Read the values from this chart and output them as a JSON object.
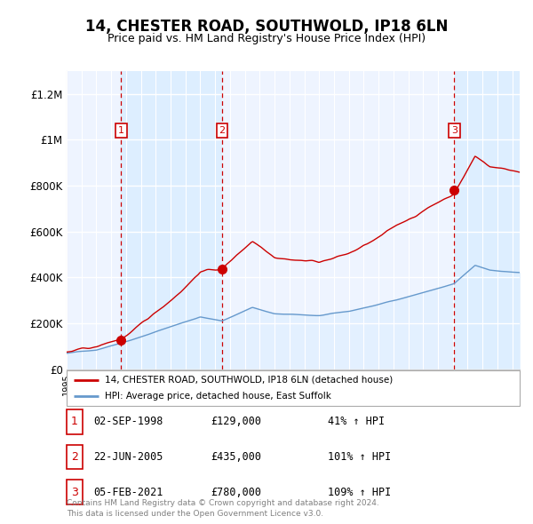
{
  "title": "14, CHESTER ROAD, SOUTHWOLD, IP18 6LN",
  "subtitle": "Price paid vs. HM Land Registry's House Price Index (HPI)",
  "sale_dates_decimal": [
    1998.67,
    2005.47,
    2021.09
  ],
  "sale_prices": [
    129000,
    435000,
    780000
  ],
  "sale_labels": [
    "1",
    "2",
    "3"
  ],
  "ylim": [
    0,
    1300000
  ],
  "yticks": [
    0,
    200000,
    400000,
    600000,
    800000,
    1000000,
    1200000
  ],
  "ytick_labels": [
    "£0",
    "£200K",
    "£400K",
    "£600K",
    "£800K",
    "£1M",
    "£1.2M"
  ],
  "house_color": "#cc0000",
  "hpi_color": "#6699cc",
  "hpi_fill_color": "#ddeeff",
  "shade_color": "#ddeeff",
  "grid_color": "#cccccc",
  "legend_items": [
    "14, CHESTER ROAD, SOUTHWOLD, IP18 6LN (detached house)",
    "HPI: Average price, detached house, East Suffolk"
  ],
  "table_rows": [
    [
      "1",
      "02-SEP-1998",
      "£129,000",
      "41% ↑ HPI"
    ],
    [
      "2",
      "22-JUN-2005",
      "£435,000",
      "101% ↑ HPI"
    ],
    [
      "3",
      "05-FEB-2021",
      "£780,000",
      "109% ↑ HPI"
    ]
  ],
  "footnote": "Contains HM Land Registry data © Crown copyright and database right 2024.\nThis data is licensed under the Open Government Licence v3.0.",
  "xstart": 1995.0,
  "xend": 2025.5
}
